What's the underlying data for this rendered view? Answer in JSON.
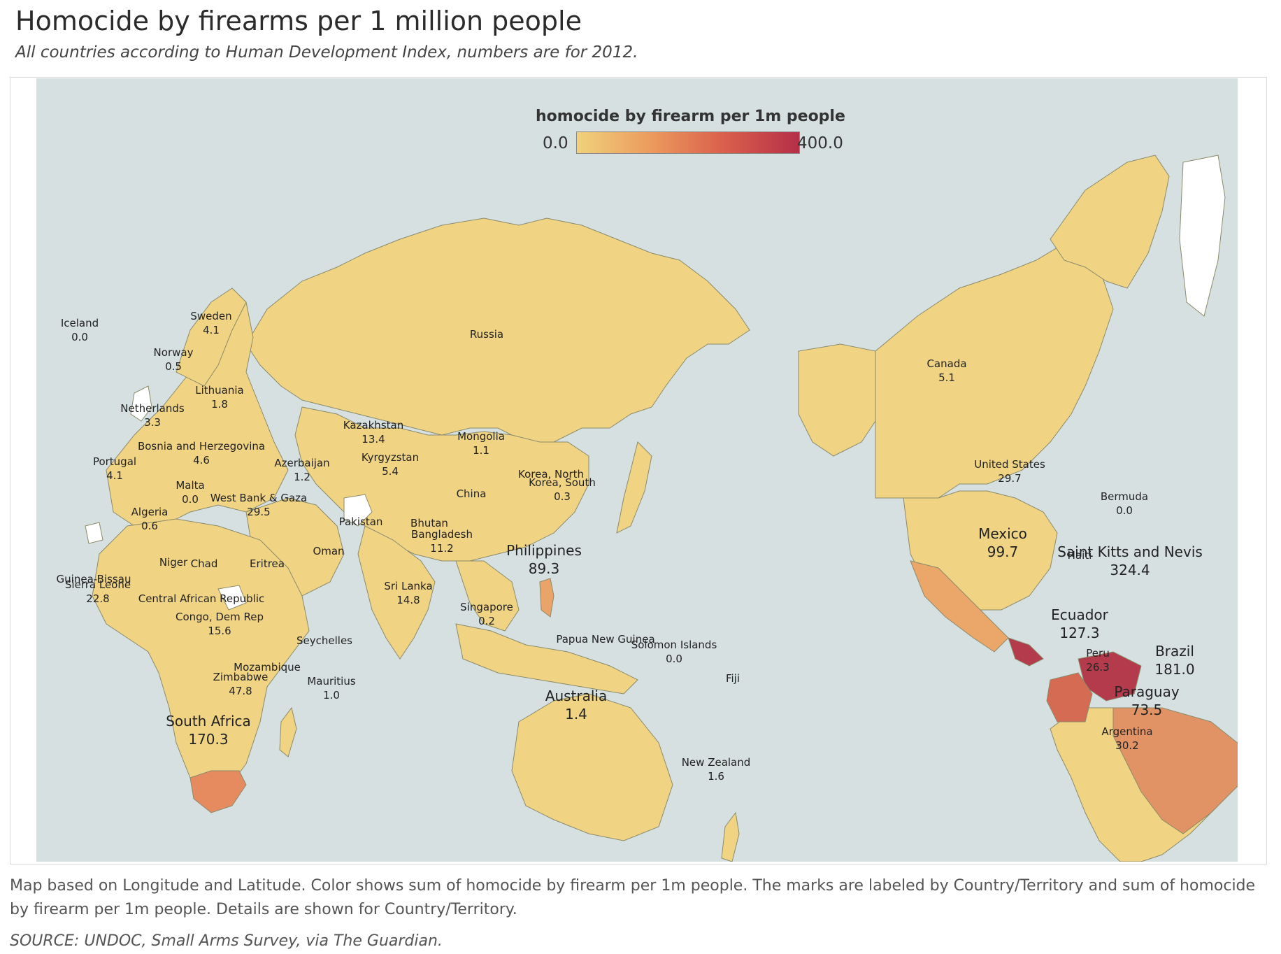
{
  "title": "Homocide by firearms per 1 million people",
  "subtitle": "All countries according to Human Development  Index, numbers are for 2012.",
  "legend": {
    "title": "homocide by firearm per 1m people",
    "min": "0.0",
    "max": "400.0",
    "colors": [
      "#f0d27b",
      "#ec9a5e",
      "#d95f4c",
      "#b52f48"
    ]
  },
  "colors": {
    "ocean": "#d6e0e1",
    "land_low": "#f1d483",
    "land_null": "#ffffff",
    "border": "#8a8a6a"
  },
  "labels": [
    {
      "name": "Iceland",
      "value": "0.0"
    },
    {
      "name": "Sweden",
      "value": "4.1"
    },
    {
      "name": "Norway",
      "value": "0.5"
    },
    {
      "name": "Lithuania",
      "value": "1.8"
    },
    {
      "name": "Netherlands",
      "value": "3.3"
    },
    {
      "name": "Bosnia and Herzegovina",
      "value": "4.6"
    },
    {
      "name": "Portugal",
      "value": "4.1"
    },
    {
      "name": "Malta",
      "value": "0.0"
    },
    {
      "name": "Azerbaijan",
      "value": "1.2"
    },
    {
      "name": "West Bank & Gaza",
      "value": "29.5"
    },
    {
      "name": "Algeria",
      "value": "0.6"
    },
    {
      "name": "Kazakhstan",
      "value": "13.4"
    },
    {
      "name": "Kyrgyzstan",
      "value": "5.4"
    },
    {
      "name": "Russia",
      "value": ""
    },
    {
      "name": "Mongolia",
      "value": "1.1"
    },
    {
      "name": "China",
      "value": ""
    },
    {
      "name": "Korea, North",
      "value": ""
    },
    {
      "name": "Korea, South",
      "value": "0.3"
    },
    {
      "name": "Pakistan",
      "value": ""
    },
    {
      "name": "Bhutan",
      "value": ""
    },
    {
      "name": "Bangladesh",
      "value": "11.2"
    },
    {
      "name": "Oman",
      "value": ""
    },
    {
      "name": "Niger",
      "value": ""
    },
    {
      "name": "Chad",
      "value": ""
    },
    {
      "name": "Eritrea",
      "value": ""
    },
    {
      "name": "Guinea-Bissau",
      "value": ""
    },
    {
      "name": "Sierra Leone",
      "value": "22.8"
    },
    {
      "name": "Central African Republic",
      "value": ""
    },
    {
      "name": "Congo, Dem Rep",
      "value": "15.6"
    },
    {
      "name": "Seychelles",
      "value": ""
    },
    {
      "name": "Mozambique",
      "value": ""
    },
    {
      "name": "Zimbabwe",
      "value": "47.8"
    },
    {
      "name": "Mauritius",
      "value": "1.0"
    },
    {
      "name": "South Africa",
      "value": "170.3"
    },
    {
      "name": "Sri Lanka",
      "value": "14.8"
    },
    {
      "name": "Philippines",
      "value": "89.3"
    },
    {
      "name": "Singapore",
      "value": "0.2"
    },
    {
      "name": "Papua New Guinea",
      "value": ""
    },
    {
      "name": "Solomon Islands",
      "value": "0.0"
    },
    {
      "name": "Fiji",
      "value": ""
    },
    {
      "name": "Australia",
      "value": "1.4"
    },
    {
      "name": "New Zealand",
      "value": "1.6"
    },
    {
      "name": "Canada",
      "value": "5.1"
    },
    {
      "name": "United States",
      "value": "29.7"
    },
    {
      "name": "Bermuda",
      "value": "0.0"
    },
    {
      "name": "Mexico",
      "value": "99.7"
    },
    {
      "name": "Haiti",
      "value": ""
    },
    {
      "name": "Saint Kitts and Nevis",
      "value": "324.4"
    },
    {
      "name": "Ecuador",
      "value": "127.3"
    },
    {
      "name": "Peru",
      "value": "26.3"
    },
    {
      "name": "Brazil",
      "value": "181.0"
    },
    {
      "name": "Paraguay",
      "value": "73.5"
    },
    {
      "name": "Argentina",
      "value": "30.2"
    }
  ],
  "footer": "Map based on Longitude and Latitude.  Color shows sum of homocide by firearm per 1m people.  The marks are labeled by Country/Territory and sum of homocide by firearm per 1m people.  Details are shown for Country/Territory.",
  "source": "SOURCE: UNDOC, Small Arms Survey, via The Guardian."
}
